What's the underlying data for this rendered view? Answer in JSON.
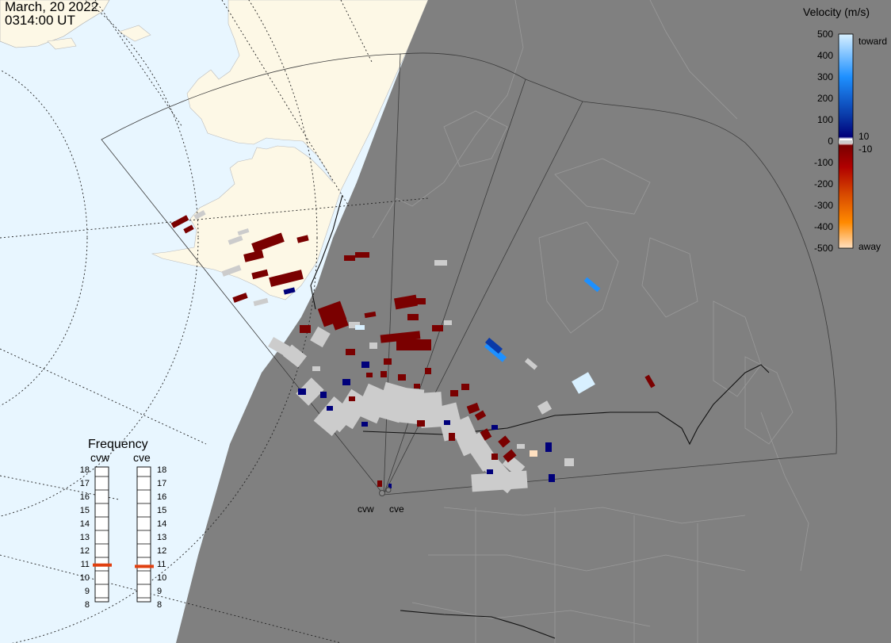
{
  "header": {
    "date": "March, 20 2022",
    "time": "0314:00 UT"
  },
  "velocity_scale": {
    "title": "Velocity (m/s)",
    "ticks": [
      "500",
      "400",
      "300",
      "200",
      "100",
      "0",
      "-100",
      "-200",
      "-300",
      "-400",
      "-500"
    ],
    "toward_label": "toward",
    "away_label": "away",
    "threshold_pos": "10",
    "threshold_neg": "-10",
    "colors": {
      "toward_max": "#d8f0ff",
      "toward_mid": "#1e90ff",
      "toward_low": "#0a3aa8",
      "toward_min": "#00007a",
      "away_min": "#7a0000",
      "away_mid": "#d84a00",
      "away_high": "#ff8a00",
      "away_max": "#ffe0c0",
      "ground_scatter": "#cccccc"
    }
  },
  "frequency": {
    "title": "Frequency",
    "left_radar": "cvw",
    "right_radar": "cve",
    "scale": [
      "18",
      "17",
      "16",
      "15",
      "14",
      "13",
      "12",
      "11",
      "10",
      "9",
      "8"
    ],
    "cvw_mhz": 10.9,
    "cve_mhz": 10.8,
    "marker_color": "#e04010"
  },
  "radars": {
    "west": "cvw",
    "east": "cve"
  },
  "map_colors": {
    "ocean": "#e8f6ff",
    "land": "#fdf8e6",
    "night": "#808080",
    "ground_scatter": "#cccccc"
  }
}
